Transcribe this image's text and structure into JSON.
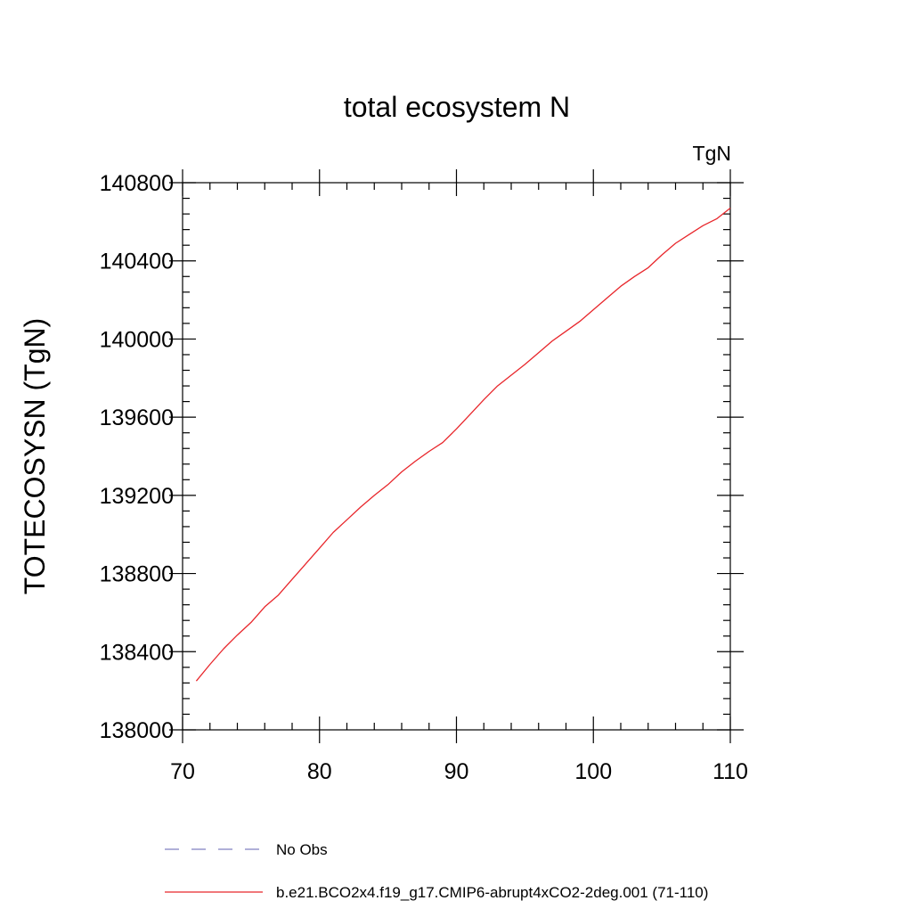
{
  "chart_data": {
    "type": "line",
    "title": "total ecosystem N",
    "units_label": "TgN",
    "xlabel": "",
    "ylabel": "TOTECOSYSN  (TgN)",
    "xlim": [
      70,
      110
    ],
    "ylim": [
      138000,
      140800
    ],
    "x_ticks": [
      70,
      80,
      90,
      100,
      110
    ],
    "x_tick_labels": [
      "70",
      "80",
      "90",
      "100",
      "110"
    ],
    "x_minor_step": 2,
    "y_ticks": [
      138000,
      138400,
      138800,
      139200,
      139600,
      140000,
      140400,
      140800
    ],
    "y_tick_labels": [
      "138000",
      "138400",
      "138800",
      "139200",
      "139600",
      "140000",
      "140400",
      "140800"
    ],
    "y_minor_step": 80,
    "grid": false,
    "legend_placement": "bottom",
    "legend": [
      {
        "name": "No Obs",
        "style": "dashed",
        "color": "#8080c0"
      },
      {
        "name": "b.e21.BCO2x4.f19_g17.CMIP6-abrupt4xCO2-2deg.001 (71-110)",
        "style": "solid",
        "color": "#e8262b"
      }
    ],
    "series": [
      {
        "name": "b.e21.BCO2x4.f19_g17.CMIP6-abrupt4xCO2-2deg.001 (71-110)",
        "color": "#e8262b",
        "x": [
          71,
          72,
          73,
          74,
          75,
          76,
          77,
          78,
          79,
          80,
          81,
          82,
          83,
          84,
          85,
          86,
          87,
          88,
          89,
          90,
          91,
          92,
          93,
          94,
          95,
          96,
          97,
          98,
          99,
          100,
          101,
          102,
          103,
          104,
          105,
          106,
          107,
          108,
          109,
          110
        ],
        "y": [
          138250,
          138335,
          138415,
          138485,
          138550,
          138630,
          138690,
          138770,
          138850,
          138930,
          139010,
          139075,
          139140,
          139200,
          139255,
          139320,
          139375,
          139425,
          139470,
          139540,
          139615,
          139690,
          139760,
          139815,
          139870,
          139930,
          139990,
          140040,
          140090,
          140150,
          140210,
          140270,
          140320,
          140365,
          140430,
          140490,
          140535,
          140580,
          140615,
          140670
        ]
      }
    ]
  }
}
